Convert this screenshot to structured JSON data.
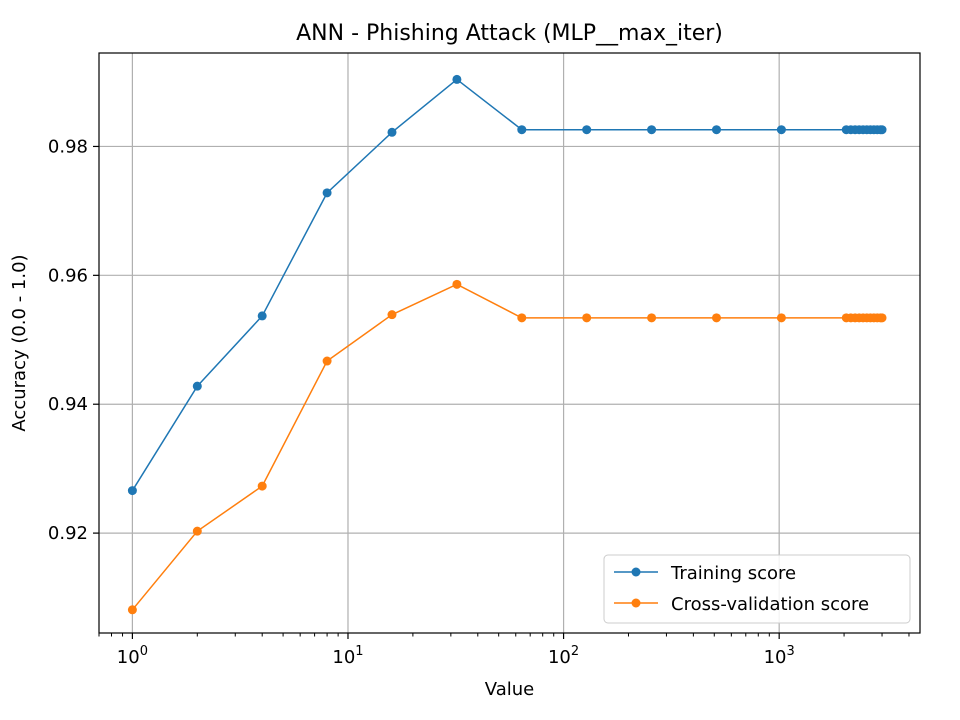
{
  "chart_data": {
    "type": "line",
    "title": "ANN - Phishing Attack (MLP__max_iter)",
    "xlabel": "Value",
    "ylabel": "Accuracy (0.0 - 1.0)",
    "xscale": "log",
    "xlim": [
      0.7,
      4500
    ],
    "ylim": [
      0.9045,
      0.9945
    ],
    "x_ticks": [
      {
        "value": 1,
        "base": "10",
        "exp": "0"
      },
      {
        "value": 10,
        "base": "10",
        "exp": "1"
      },
      {
        "value": 100,
        "base": "10",
        "exp": "2"
      },
      {
        "value": 1000,
        "base": "10",
        "exp": "3"
      }
    ],
    "y_ticks": [
      {
        "value": 0.92,
        "label": "0.92"
      },
      {
        "value": 0.94,
        "label": "0.94"
      },
      {
        "value": 0.96,
        "label": "0.96"
      },
      {
        "value": 0.98,
        "label": "0.98"
      }
    ],
    "grid": true,
    "legend_position": "bottom-right",
    "x": [
      1,
      2,
      4,
      8,
      16,
      32,
      64,
      128,
      256,
      512,
      1024,
      2048,
      2150,
      2250,
      2350,
      2450,
      2550,
      2650,
      2750,
      2850,
      2950,
      3000
    ],
    "series": [
      {
        "name": "Training score",
        "color": "#1f77b4",
        "values": [
          0.9266,
          0.9428,
          0.9537,
          0.9728,
          0.9822,
          0.9904,
          0.9826,
          0.9826,
          0.9826,
          0.9826,
          0.9826,
          0.9826,
          0.9826,
          0.9826,
          0.9826,
          0.9826,
          0.9826,
          0.9826,
          0.9826,
          0.9826,
          0.9826,
          0.9826
        ]
      },
      {
        "name": "Cross-validation score",
        "color": "#ff7f0e",
        "values": [
          0.9081,
          0.9203,
          0.9273,
          0.9467,
          0.9539,
          0.9586,
          0.9534,
          0.9534,
          0.9534,
          0.9534,
          0.9534,
          0.9534,
          0.9534,
          0.9534,
          0.9534,
          0.9534,
          0.9534,
          0.9534,
          0.9534,
          0.9534,
          0.9534,
          0.9534
        ]
      }
    ]
  }
}
